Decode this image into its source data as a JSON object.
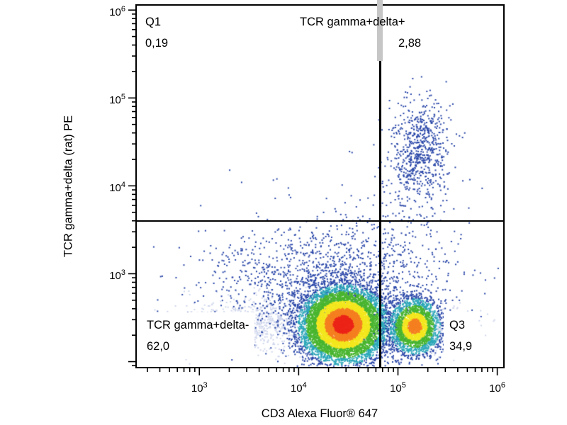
{
  "page": {
    "background": "#ffffff"
  },
  "chart_data": {
    "type": "scatter",
    "subtype": "flow-cytometry-pseudocolor-density-plot",
    "title": "",
    "xlabel": "CD3 Alexa Fluor® 647",
    "ylabel": "TCR gamma+delta (rat) PE",
    "x_scale": "log10",
    "y_scale": "log10",
    "x_range_log": [
      2.37,
      6.06
    ],
    "y_range_log": [
      1.94,
      6.05
    ],
    "x_ticks_exponents": [
      3,
      4,
      5,
      6
    ],
    "y_ticks_exponents": [
      3,
      4,
      5,
      6
    ],
    "tick_base": "10",
    "grid": false,
    "legend": false,
    "gates": {
      "x_log": 4.82,
      "y_log": 3.6,
      "x_value_approx": 66000,
      "y_value_approx": 4000
    },
    "quadrants": [
      {
        "name": "Q1",
        "label": "Q1",
        "value": "0,19",
        "percent": 0.19,
        "position": "top-left"
      },
      {
        "name": "TCR gamma+delta+",
        "label": "TCR gamma+delta+",
        "value": "2,88",
        "percent": 2.88,
        "position": "top-right"
      },
      {
        "name": "TCR gamma+delta-",
        "label": "TCR gamma+delta-",
        "value": "62,0",
        "percent": 62.0,
        "position": "bottom-left"
      },
      {
        "name": "Q3",
        "label": "Q3",
        "value": "34,9",
        "percent": 34.9,
        "position": "bottom-right"
      }
    ],
    "colors": {
      "blue": "#2946a8",
      "pale": "#cfd6ec",
      "gate_line": "#000000",
      "gate_handle": "#c6c6c6",
      "density_main": [
        [
          0.5,
          "#ec2418"
        ],
        [
          0.9,
          "#f57f20"
        ],
        [
          1.3,
          "#f3e71e"
        ],
        [
          1.8,
          "#49b52f"
        ],
        [
          2.2,
          "#2aa7b8"
        ],
        [
          99,
          "#2946a8"
        ]
      ],
      "density_secondary": [
        [
          0.55,
          "#f57f20"
        ],
        [
          1.0,
          "#f3e71e"
        ],
        [
          1.5,
          "#49b52f"
        ],
        [
          2.0,
          "#2aa7b8"
        ],
        [
          99,
          "#2946a8"
        ]
      ]
    },
    "populations": [
      {
        "name": "ungated-pale-left",
        "color": "pale",
        "center_log": [
          3.35,
          2.4
        ],
        "sigma_log": [
          0.38,
          0.14
        ],
        "count": 750
      },
      {
        "name": "ungated-pale-mid",
        "color": "pale",
        "center_log": [
          3.85,
          2.48
        ],
        "sigma_log": [
          0.28,
          0.16
        ],
        "count": 300
      },
      {
        "name": "ungated-pale-right",
        "color": "pale",
        "center_log": [
          5.38,
          2.35
        ],
        "sigma_log": [
          0.2,
          0.13
        ],
        "count": 380
      },
      {
        "name": "cd3-dim-background",
        "color": "blue",
        "center_log": [
          4.25,
          2.9
        ],
        "sigma_log": [
          0.6,
          0.32
        ],
        "count": 1300
      },
      {
        "name": "gate-bridge-scatter",
        "color": "blue",
        "center_log": [
          5.05,
          3.45
        ],
        "sigma_log": [
          0.35,
          0.5
        ],
        "count": 220
      },
      {
        "name": "q1-sparse",
        "color": "blue",
        "center_log": [
          3.85,
          3.8
        ],
        "sigma_log": [
          0.4,
          0.18
        ],
        "count": 10
      },
      {
        "name": "tcr-gamma-delta-positive",
        "color": "blue",
        "center_log": [
          5.22,
          4.42
        ],
        "sigma_log": [
          0.15,
          0.28
        ],
        "count": 650
      },
      {
        "name": "tcr-gamma-delta-negative",
        "style": "density_main",
        "center_log": [
          4.45,
          2.42
        ],
        "sigma_log": [
          0.21,
          0.21
        ],
        "count": 9000
      },
      {
        "name": "cd3-bright-tcr-gd-negative",
        "style": "density_secondary",
        "center_log": [
          5.17,
          2.4
        ],
        "sigma_log": [
          0.13,
          0.16
        ],
        "count": 2600
      }
    ]
  }
}
